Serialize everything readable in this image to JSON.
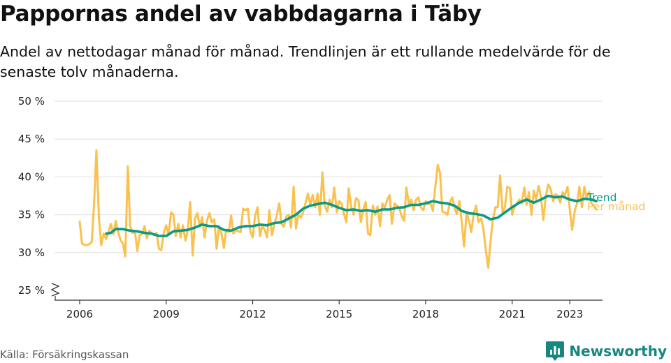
{
  "header": {
    "title": "Pappornas andel av vabbdagarna i Täby",
    "subtitle": "Andel av nettodagar månad för månad. Trendlinjen är ett rullande medelvärde för de senaste tolv månaderna."
  },
  "footer": {
    "source": "Källa: Försäkringskassan",
    "brand": "Newsworthy",
    "brand_icon": "bar-chart-logo-icon",
    "brand_color": "#15877f"
  },
  "chart_data": {
    "type": "line",
    "title": "Pappornas andel av vabbdagarna i Täby",
    "subtitle": "Andel av nettodagar månad för månad. Trendlinjen är ett rullande medelvärde för de senaste tolv månaderna.",
    "xlabel": "",
    "ylabel": "",
    "x_ticks": [
      2006,
      2009,
      2012,
      2015,
      2018,
      2021,
      2023
    ],
    "y_ticks": [
      25,
      30,
      35,
      40,
      45,
      50
    ],
    "y_tick_labels": [
      "25 %",
      "30 %",
      "35 %",
      "40 %",
      "45 %",
      "50 %"
    ],
    "ylim": [
      25,
      50
    ],
    "xlim": [
      2006,
      2023.5
    ],
    "y_axis_break": true,
    "grid": true,
    "legend": "inline-right",
    "series": [
      {
        "name": "Per månad",
        "color": "#fbc14d",
        "points": [
          [
            2006.0,
            34.1
          ],
          [
            2006.08,
            31.2
          ],
          [
            2006.17,
            31.0
          ],
          [
            2006.25,
            31.0
          ],
          [
            2006.33,
            31.1
          ],
          [
            2006.42,
            31.4
          ],
          [
            2006.5,
            36.5
          ],
          [
            2006.58,
            43.5
          ],
          [
            2006.67,
            34.5
          ],
          [
            2006.75,
            31.0
          ],
          [
            2006.83,
            32.5
          ],
          [
            2006.92,
            31.8
          ],
          [
            2007.0,
            32.7
          ],
          [
            2007.08,
            33.8
          ],
          [
            2007.17,
            32.4
          ],
          [
            2007.25,
            34.2
          ],
          [
            2007.33,
            32.8
          ],
          [
            2007.42,
            31.6
          ],
          [
            2007.5,
            31.2
          ],
          [
            2007.58,
            29.5
          ],
          [
            2007.67,
            41.4
          ],
          [
            2007.75,
            33.5
          ],
          [
            2007.83,
            32.6
          ],
          [
            2007.92,
            32.7
          ],
          [
            2008.0,
            30.2
          ],
          [
            2008.08,
            32.3
          ],
          [
            2008.17,
            32.5
          ],
          [
            2008.25,
            33.5
          ],
          [
            2008.33,
            31.9
          ],
          [
            2008.42,
            32.9
          ],
          [
            2008.5,
            32.5
          ],
          [
            2008.58,
            32.3
          ],
          [
            2008.67,
            32.6
          ],
          [
            2008.75,
            30.5
          ],
          [
            2008.83,
            30.3
          ],
          [
            2008.92,
            32.7
          ],
          [
            2009.0,
            33.6
          ],
          [
            2009.08,
            32.3
          ],
          [
            2009.17,
            35.3
          ],
          [
            2009.25,
            35.0
          ],
          [
            2009.33,
            32.2
          ],
          [
            2009.42,
            33.8
          ],
          [
            2009.5,
            32.0
          ],
          [
            2009.58,
            33.6
          ],
          [
            2009.67,
            31.6
          ],
          [
            2009.75,
            33.0
          ],
          [
            2009.83,
            36.7
          ],
          [
            2009.92,
            29.6
          ],
          [
            2010.0,
            34.5
          ],
          [
            2010.08,
            35.2
          ],
          [
            2010.17,
            33.4
          ],
          [
            2010.25,
            34.7
          ],
          [
            2010.33,
            32.0
          ],
          [
            2010.42,
            34.3
          ],
          [
            2010.5,
            35.2
          ],
          [
            2010.58,
            34.0
          ],
          [
            2010.67,
            34.4
          ],
          [
            2010.75,
            30.5
          ],
          [
            2010.83,
            33.5
          ],
          [
            2010.92,
            32.5
          ],
          [
            2011.0,
            30.6
          ],
          [
            2011.08,
            33.0
          ],
          [
            2011.17,
            32.7
          ],
          [
            2011.25,
            34.9
          ],
          [
            2011.33,
            32.5
          ],
          [
            2011.42,
            33.0
          ],
          [
            2011.5,
            32.8
          ],
          [
            2011.58,
            32.7
          ],
          [
            2011.67,
            35.8
          ],
          [
            2011.75,
            35.6
          ],
          [
            2011.83,
            35.8
          ],
          [
            2011.92,
            32.8
          ],
          [
            2012.0,
            32.0
          ],
          [
            2012.08,
            34.8
          ],
          [
            2012.17,
            36.0
          ],
          [
            2012.25,
            32.2
          ],
          [
            2012.33,
            33.5
          ],
          [
            2012.42,
            33.0
          ],
          [
            2012.5,
            32.0
          ],
          [
            2012.58,
            35.6
          ],
          [
            2012.67,
            32.3
          ],
          [
            2012.75,
            33.7
          ],
          [
            2012.83,
            34.8
          ],
          [
            2012.92,
            36.5
          ],
          [
            2013.0,
            33.8
          ],
          [
            2013.08,
            33.4
          ],
          [
            2013.17,
            34.8
          ],
          [
            2013.25,
            35.0
          ],
          [
            2013.33,
            33.3
          ],
          [
            2013.42,
            38.7
          ],
          [
            2013.5,
            33.2
          ],
          [
            2013.58,
            35.0
          ],
          [
            2013.67,
            34.6
          ],
          [
            2013.75,
            35.3
          ],
          [
            2013.83,
            36.5
          ],
          [
            2013.92,
            37.8
          ],
          [
            2014.0,
            36.3
          ],
          [
            2014.08,
            37.6
          ],
          [
            2014.17,
            36.0
          ],
          [
            2014.25,
            37.8
          ],
          [
            2014.33,
            35.0
          ],
          [
            2014.42,
            40.6
          ],
          [
            2014.5,
            36.2
          ],
          [
            2014.58,
            35.4
          ],
          [
            2014.67,
            37.0
          ],
          [
            2014.75,
            36.0
          ],
          [
            2014.83,
            38.6
          ],
          [
            2014.92,
            35.3
          ],
          [
            2015.0,
            36.8
          ],
          [
            2015.08,
            36.5
          ],
          [
            2015.17,
            35.0
          ],
          [
            2015.25,
            34.0
          ],
          [
            2015.33,
            38.5
          ],
          [
            2015.42,
            36.0
          ],
          [
            2015.5,
            35.0
          ],
          [
            2015.58,
            37.2
          ],
          [
            2015.67,
            36.9
          ],
          [
            2015.75,
            34.0
          ],
          [
            2015.83,
            35.6
          ],
          [
            2015.92,
            36.7
          ],
          [
            2016.0,
            32.5
          ],
          [
            2016.08,
            32.3
          ],
          [
            2016.17,
            36.2
          ],
          [
            2016.25,
            35.0
          ],
          [
            2016.33,
            36.1
          ],
          [
            2016.42,
            33.5
          ],
          [
            2016.5,
            36.5
          ],
          [
            2016.58,
            35.9
          ],
          [
            2016.67,
            37.0
          ],
          [
            2016.75,
            37.6
          ],
          [
            2016.83,
            33.8
          ],
          [
            2016.92,
            36.5
          ],
          [
            2017.0,
            36.2
          ],
          [
            2017.08,
            36.0
          ],
          [
            2017.17,
            34.8
          ],
          [
            2017.25,
            34.2
          ],
          [
            2017.33,
            38.6
          ],
          [
            2017.42,
            36.3
          ],
          [
            2017.5,
            37.0
          ],
          [
            2017.58,
            35.6
          ],
          [
            2017.67,
            37.0
          ],
          [
            2017.75,
            37.3
          ],
          [
            2017.83,
            36.0
          ],
          [
            2017.92,
            35.6
          ],
          [
            2018.0,
            36.8
          ],
          [
            2018.08,
            36.4
          ],
          [
            2018.17,
            36.5
          ],
          [
            2018.25,
            35.5
          ],
          [
            2018.33,
            38.5
          ],
          [
            2018.42,
            41.6
          ],
          [
            2018.5,
            40.5
          ],
          [
            2018.58,
            35.4
          ],
          [
            2018.67,
            35.3
          ],
          [
            2018.75,
            35.0
          ],
          [
            2018.83,
            36.5
          ],
          [
            2018.92,
            37.3
          ],
          [
            2019.0,
            35.9
          ],
          [
            2019.08,
            35.1
          ],
          [
            2019.17,
            36.8
          ],
          [
            2019.25,
            34.0
          ],
          [
            2019.33,
            30.8
          ],
          [
            2019.42,
            35.4
          ],
          [
            2019.5,
            34.2
          ],
          [
            2019.58,
            32.7
          ],
          [
            2019.67,
            35.2
          ],
          [
            2019.75,
            36.2
          ],
          [
            2019.83,
            34.0
          ],
          [
            2019.92,
            34.5
          ],
          [
            2020.0,
            33.2
          ],
          [
            2020.08,
            30.5
          ],
          [
            2020.17,
            28.0
          ],
          [
            2020.25,
            31.5
          ],
          [
            2020.33,
            34.3
          ],
          [
            2020.42,
            36.0
          ],
          [
            2020.5,
            36.0
          ],
          [
            2020.58,
            40.2
          ],
          [
            2020.67,
            35.3
          ],
          [
            2020.75,
            36.0
          ],
          [
            2020.83,
            38.7
          ],
          [
            2020.92,
            38.5
          ],
          [
            2021.0,
            35.0
          ],
          [
            2021.08,
            36.0
          ],
          [
            2021.17,
            36.5
          ],
          [
            2021.25,
            37.0
          ],
          [
            2021.33,
            36.5
          ],
          [
            2021.42,
            38.6
          ],
          [
            2021.5,
            36.3
          ],
          [
            2021.58,
            38.0
          ],
          [
            2021.67,
            35.0
          ],
          [
            2021.75,
            38.2
          ],
          [
            2021.83,
            37.0
          ],
          [
            2021.92,
            38.8
          ],
          [
            2022.0,
            37.3
          ],
          [
            2022.08,
            34.3
          ],
          [
            2022.17,
            37.5
          ],
          [
            2022.25,
            39.0
          ],
          [
            2022.33,
            38.5
          ],
          [
            2022.42,
            36.8
          ],
          [
            2022.5,
            37.7
          ],
          [
            2022.58,
            37.5
          ],
          [
            2022.67,
            36.6
          ],
          [
            2022.75,
            38.0
          ],
          [
            2022.83,
            37.6
          ],
          [
            2022.92,
            38.7
          ],
          [
            2023.0,
            35.6
          ],
          [
            2023.08,
            33.0
          ],
          [
            2023.17,
            35.5
          ],
          [
            2023.25,
            36.5
          ],
          [
            2023.33,
            38.7
          ],
          [
            2023.42,
            36.0
          ],
          [
            2023.5,
            38.7
          ],
          [
            2023.58,
            37.2
          ],
          [
            2023.67,
            38.0
          ],
          [
            2023.75,
            36.5
          ],
          [
            2023.83,
            36.2
          ],
          [
            2023.92,
            35.7
          ]
        ]
      },
      {
        "name": "Trend",
        "color": "#0a9a86",
        "points": [
          [
            2006.92,
            32.5
          ],
          [
            2007.08,
            32.6
          ],
          [
            2007.25,
            33.1
          ],
          [
            2007.5,
            33.1
          ],
          [
            2007.75,
            32.9
          ],
          [
            2008.0,
            32.8
          ],
          [
            2008.25,
            32.6
          ],
          [
            2008.5,
            32.5
          ],
          [
            2008.75,
            32.2
          ],
          [
            2009.0,
            32.2
          ],
          [
            2009.25,
            32.8
          ],
          [
            2009.5,
            32.9
          ],
          [
            2009.75,
            33.0
          ],
          [
            2010.0,
            33.3
          ],
          [
            2010.25,
            33.7
          ],
          [
            2010.5,
            33.5
          ],
          [
            2010.75,
            33.5
          ],
          [
            2011.0,
            33.0
          ],
          [
            2011.25,
            32.9
          ],
          [
            2011.5,
            33.3
          ],
          [
            2011.75,
            33.5
          ],
          [
            2012.0,
            33.5
          ],
          [
            2012.25,
            33.7
          ],
          [
            2012.5,
            33.6
          ],
          [
            2012.75,
            33.9
          ],
          [
            2013.0,
            34.0
          ],
          [
            2013.25,
            34.5
          ],
          [
            2013.5,
            35.0
          ],
          [
            2013.75,
            35.8
          ],
          [
            2014.0,
            36.2
          ],
          [
            2014.25,
            36.4
          ],
          [
            2014.5,
            36.6
          ],
          [
            2014.75,
            36.3
          ],
          [
            2015.0,
            35.9
          ],
          [
            2015.25,
            35.6
          ],
          [
            2015.5,
            35.7
          ],
          [
            2015.75,
            35.5
          ],
          [
            2016.0,
            35.6
          ],
          [
            2016.25,
            35.4
          ],
          [
            2016.5,
            35.7
          ],
          [
            2016.75,
            35.7
          ],
          [
            2017.0,
            35.9
          ],
          [
            2017.25,
            36.0
          ],
          [
            2017.5,
            36.3
          ],
          [
            2017.75,
            36.3
          ],
          [
            2018.0,
            36.5
          ],
          [
            2018.25,
            36.8
          ],
          [
            2018.5,
            36.6
          ],
          [
            2018.75,
            36.5
          ],
          [
            2019.0,
            36.2
          ],
          [
            2019.25,
            35.5
          ],
          [
            2019.5,
            35.2
          ],
          [
            2019.75,
            35.1
          ],
          [
            2020.0,
            34.9
          ],
          [
            2020.25,
            34.4
          ],
          [
            2020.5,
            34.6
          ],
          [
            2020.75,
            35.3
          ],
          [
            2021.0,
            36.0
          ],
          [
            2021.25,
            36.6
          ],
          [
            2021.5,
            37.0
          ],
          [
            2021.75,
            36.6
          ],
          [
            2022.0,
            37.0
          ],
          [
            2022.25,
            37.5
          ],
          [
            2022.5,
            37.3
          ],
          [
            2022.75,
            37.4
          ],
          [
            2023.0,
            37.0
          ],
          [
            2023.25,
            36.8
          ],
          [
            2023.5,
            37.1
          ],
          [
            2023.75,
            37.0
          ],
          [
            2023.92,
            36.8
          ]
        ]
      }
    ]
  }
}
